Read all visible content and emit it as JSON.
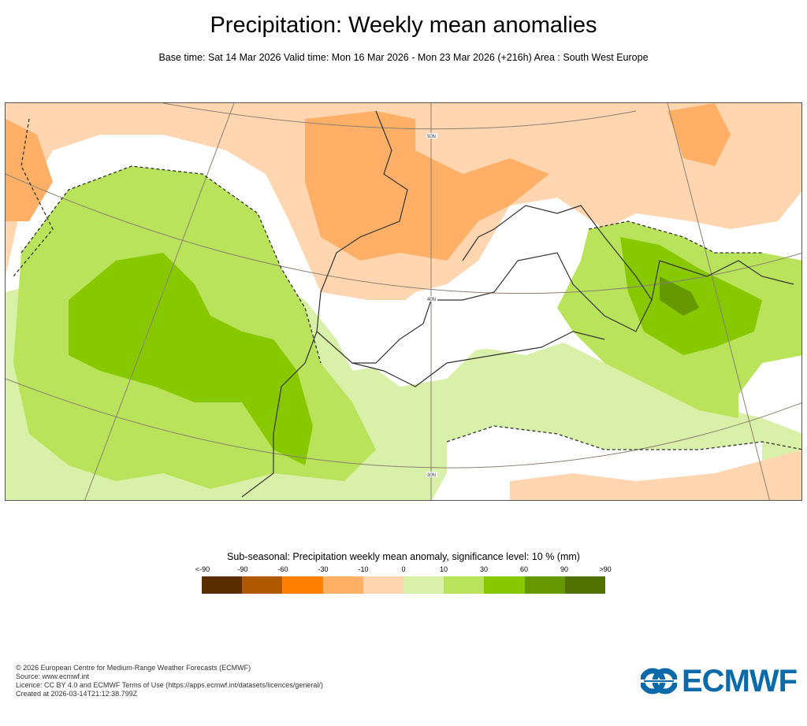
{
  "header": {
    "title": "Precipitation: Weekly mean anomalies",
    "subtitle": "Base time: Sat 14 Mar 2026 Valid time: Mon 16 Mar 2026 - Mon 23 Mar 2026 (+216h) Area : South West Europe"
  },
  "map": {
    "area": "South West Europe",
    "latitude_labels": [
      "50N",
      "40N",
      "30N"
    ],
    "significance_contour": "dashed"
  },
  "legend": {
    "title": "Sub-seasonal: Precipitation weekly mean anomaly, significance level: 10 % (mm)",
    "labels": [
      "<-90",
      "-90",
      "-60",
      "-30",
      "-10",
      "0",
      "10",
      "30",
      "60",
      "90",
      ">90"
    ],
    "colors": [
      "#5a2d00",
      "#b05800",
      "#ff8000",
      "#ffb066",
      "#ffd6b0",
      "#d9f0a8",
      "#b8e35a",
      "#88c800",
      "#669900",
      "#507000"
    ]
  },
  "footer": {
    "lines": [
      "© 2026 European Centre for Medium-Range Weather Forecasts (ECMWF)",
      "Source: www.ecmwf.int",
      "Licence: CC BY 4.0 and ECMWF Terms of Use (https://apps.ecmwf.int/datasets/licences/general/)",
      "Created at 2026-03-14T21:12:38.799Z"
    ]
  },
  "logo": {
    "text": "ECMWF",
    "color": "#0d6aa8"
  }
}
